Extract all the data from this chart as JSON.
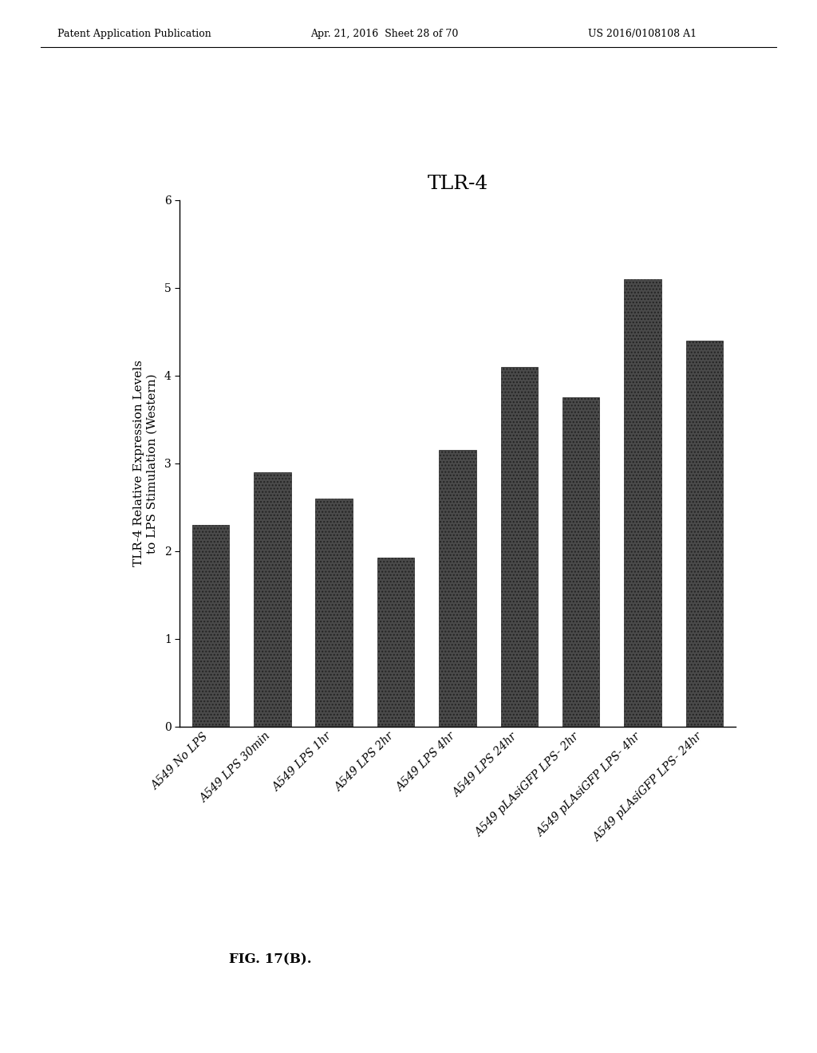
{
  "title": "TLR-4",
  "ylabel_line1": "TLR-4 Relative Expression Levels",
  "ylabel_line2": "to LPS Stimulation (Western)",
  "categories": [
    "A549 No LPS",
    "A549 LPS 30min",
    "A549 LPS 1hr",
    "A549 LPS 2hr",
    "A549 LPS 4hr",
    "A549 LPS 24hr",
    "A549 pLAsiGFP LPS- 2hr",
    "A549 pLAsiGFP LPS- 4hr",
    "A549 pLAsiGFP LPS- 24hr"
  ],
  "values": [
    2.3,
    2.9,
    2.6,
    1.93,
    3.15,
    4.1,
    3.75,
    5.1,
    4.4
  ],
  "bar_color": "#4a4a4a",
  "ylim": [
    0,
    6
  ],
  "yticks": [
    0,
    1,
    2,
    3,
    4,
    5,
    6
  ],
  "fig_caption": "FIG. 17(B).",
  "background_color": "#ffffff",
  "title_fontsize": 18,
  "ylabel_fontsize": 11,
  "tick_fontsize": 10,
  "caption_fontsize": 12,
  "header_left": "Patent Application Publication",
  "header_center": "Apr. 21, 2016  Sheet 28 of 70",
  "header_right": "US 2016/0108108 A1"
}
